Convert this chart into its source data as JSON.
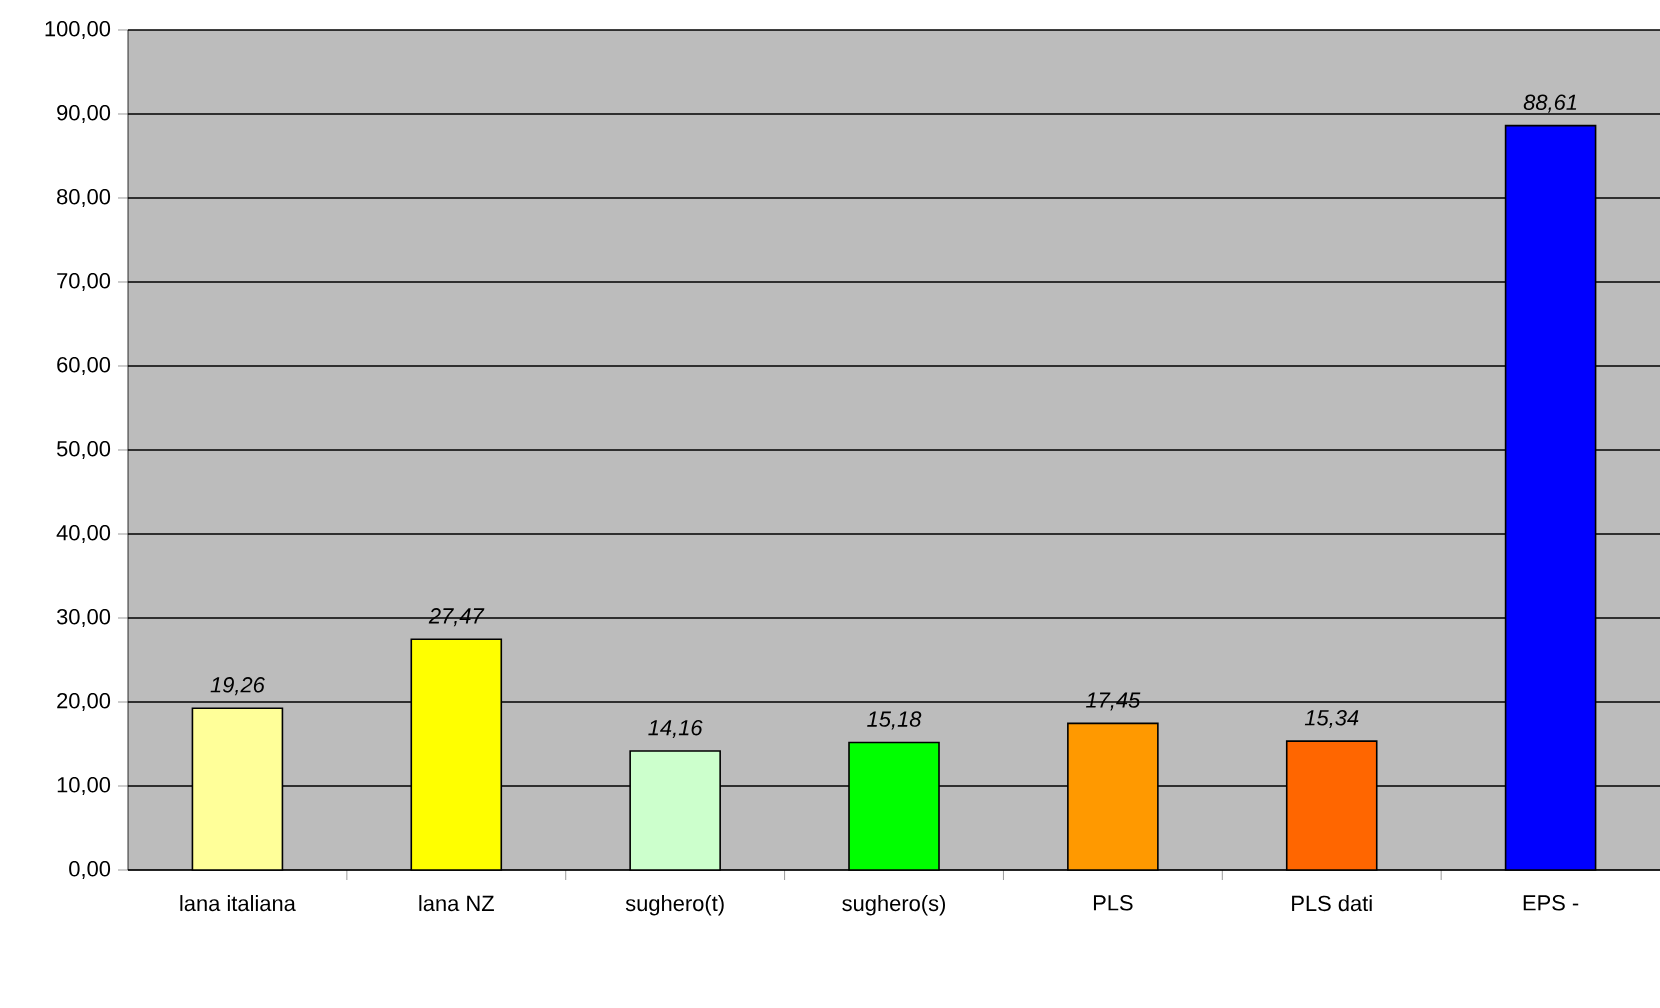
{
  "chart_data": {
    "type": "bar",
    "categories": [
      "lana italiana",
      "lana NZ",
      "sughero(t)",
      "sughero(s)",
      "PLS",
      "PLS dati",
      "EPS -"
    ],
    "values": [
      19.26,
      27.47,
      14.16,
      15.18,
      17.45,
      15.34,
      88.61
    ],
    "colors": [
      "#ffff99",
      "#ffff00",
      "#ccffcc",
      "#00ff00",
      "#ff9900",
      "#ff6600",
      "#0000ff"
    ],
    "value_labels": [
      "19,26",
      "27,47",
      "14,16",
      "15,18",
      "17,45",
      "15,34",
      "88,61"
    ],
    "ylim": [
      0,
      100
    ],
    "yticks": [
      {
        "value": 0,
        "label": "0,00"
      },
      {
        "value": 10,
        "label": "10,00"
      },
      {
        "value": 20,
        "label": "20,00"
      },
      {
        "value": 30,
        "label": "30,00"
      },
      {
        "value": 40,
        "label": "40,00"
      },
      {
        "value": 50,
        "label": "50,00"
      },
      {
        "value": 60,
        "label": "60,00"
      },
      {
        "value": 70,
        "label": "70,00"
      },
      {
        "value": 80,
        "label": "80,00"
      },
      {
        "value": 90,
        "label": "90,00"
      },
      {
        "value": 100,
        "label": "100,00"
      }
    ],
    "grid": "y"
  }
}
